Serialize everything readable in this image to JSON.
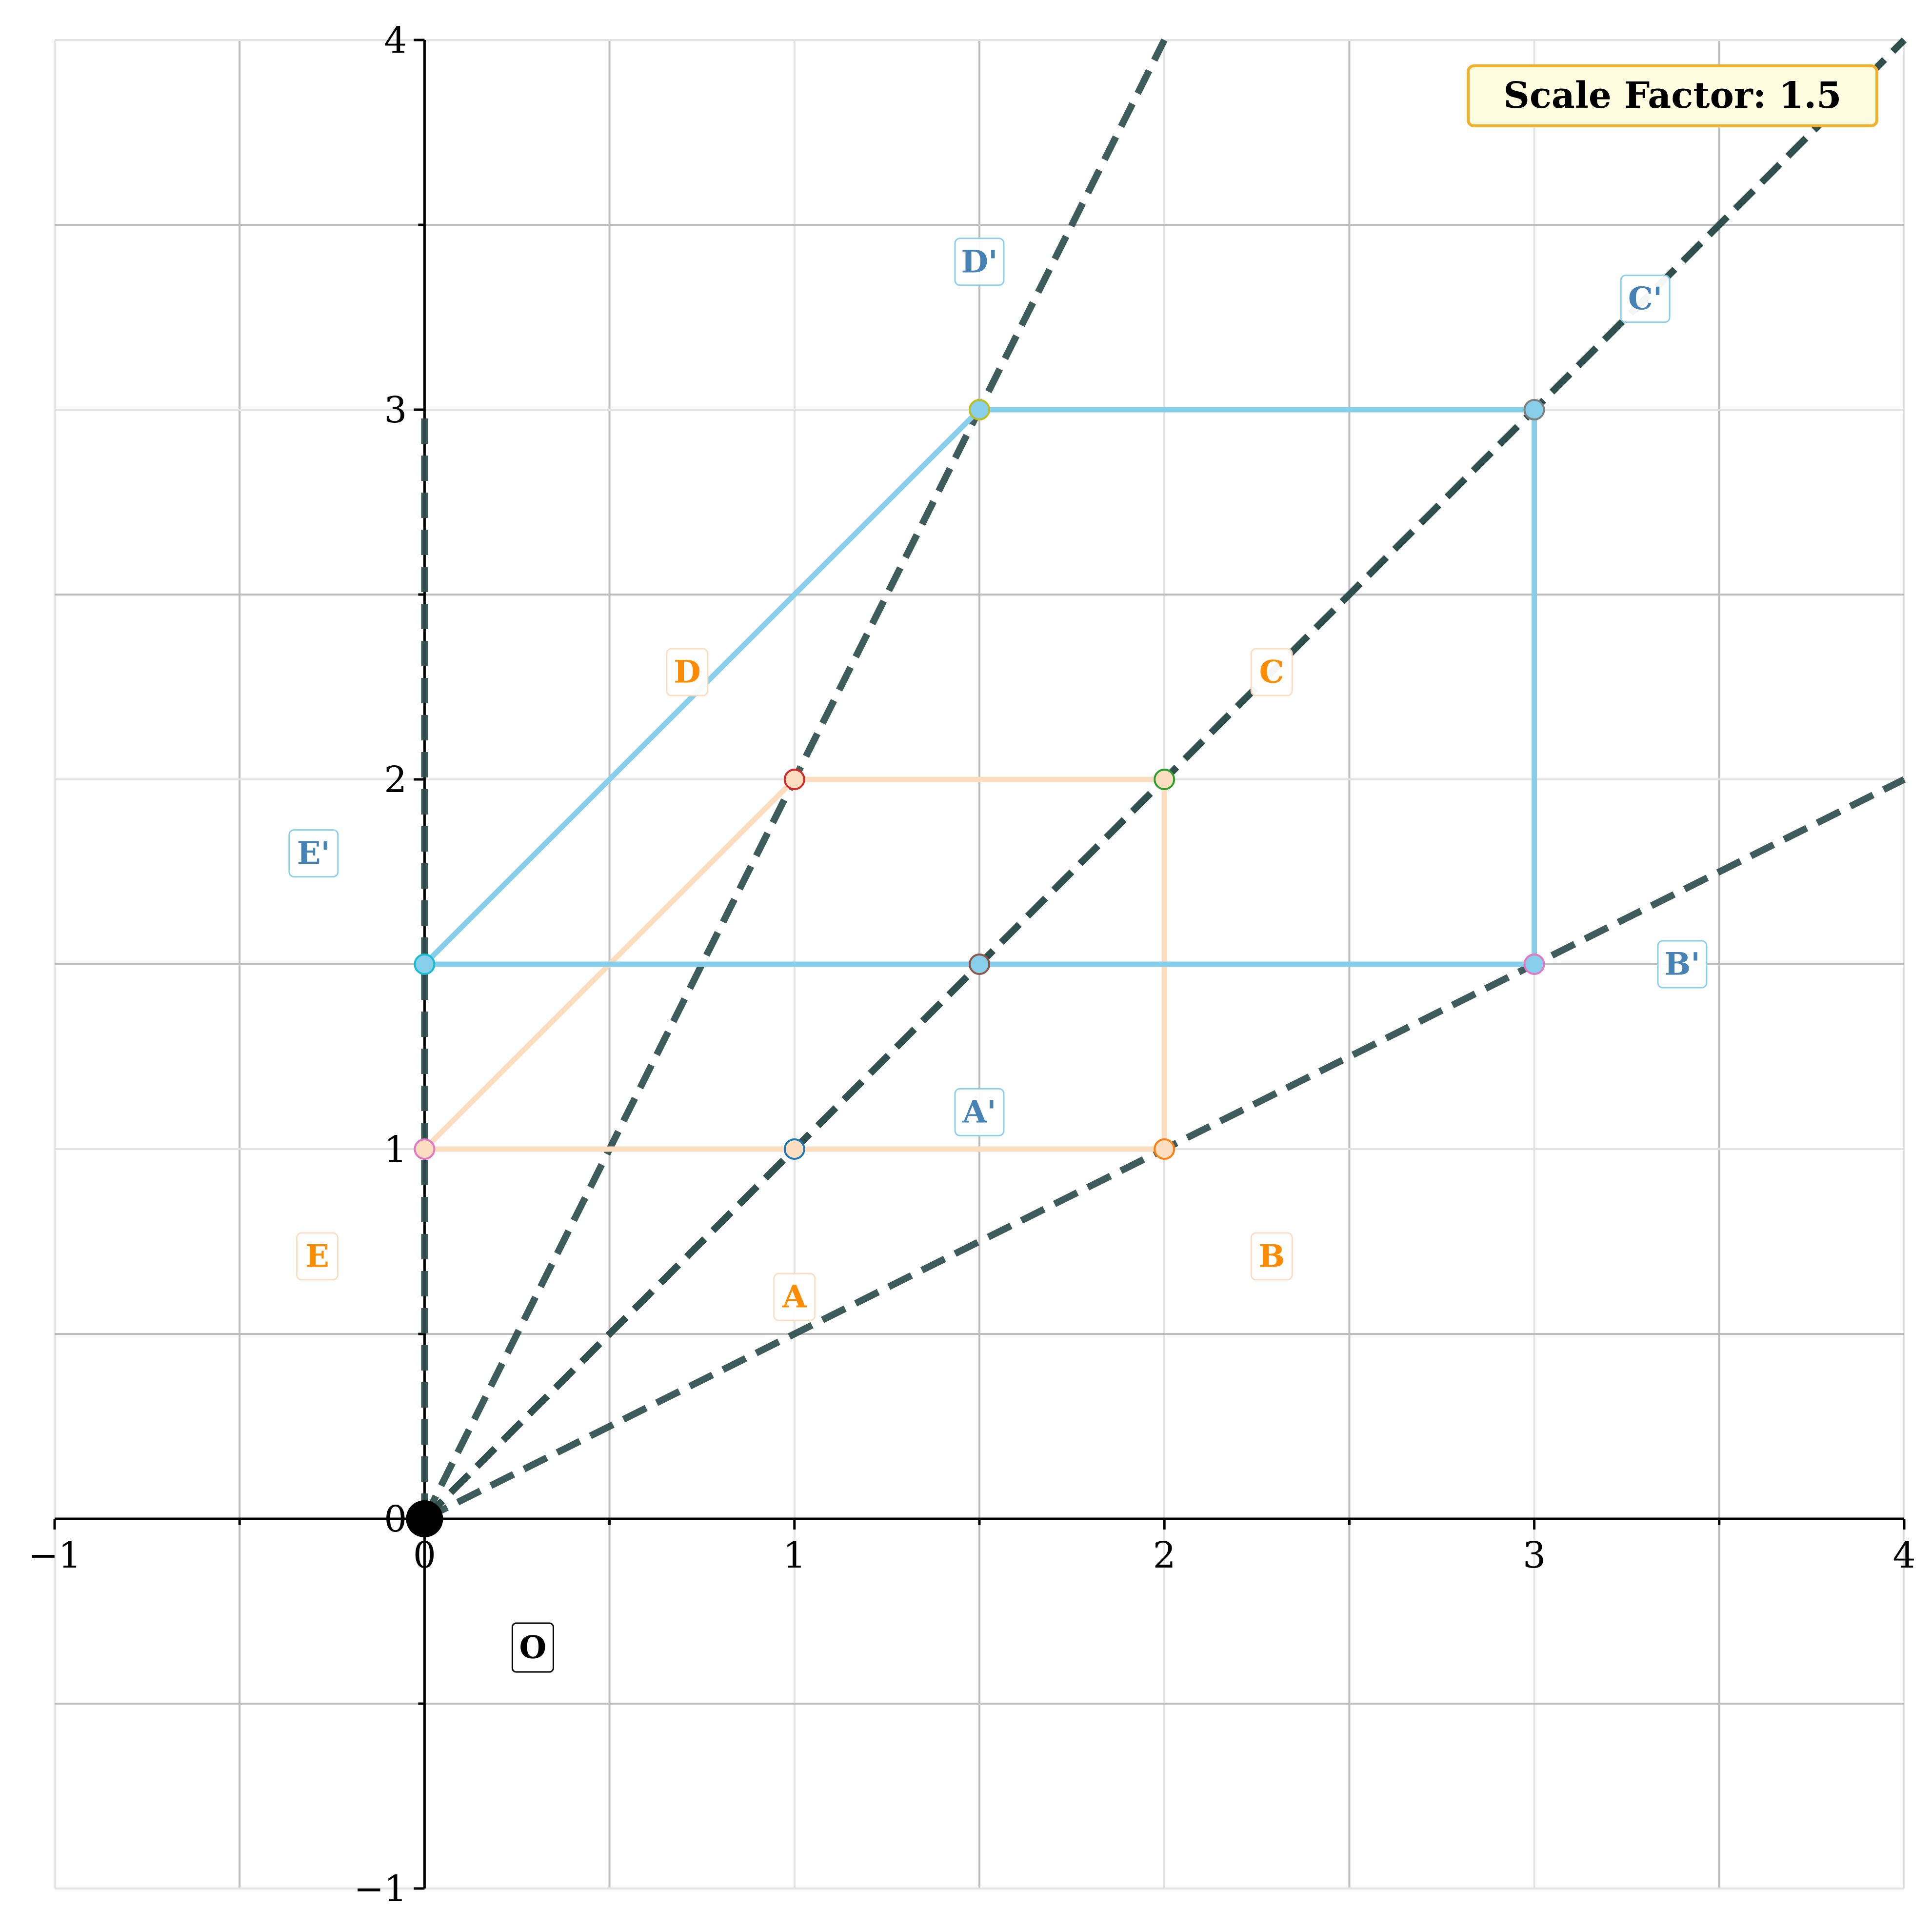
{
  "chart_data": {
    "type": "line",
    "title": "",
    "xlabel": "",
    "ylabel": "",
    "xlim": [
      -1,
      4
    ],
    "ylim": [
      -1,
      4
    ],
    "x_ticks": [
      -1,
      0,
      1,
      2,
      3,
      4
    ],
    "y_ticks": [
      -1,
      0,
      1,
      2,
      3,
      4
    ],
    "x_tick_labels": [
      "−1",
      "0",
      "1",
      "2",
      "3",
      "4"
    ],
    "y_tick_labels": [
      "−1",
      "0",
      "1",
      "2",
      "3",
      "4"
    ],
    "grid": true,
    "center": {
      "label": "O",
      "x": 0,
      "y": 0
    },
    "scale_factor_text": "Scale Factor: 1.5",
    "scale_factor": 1.5,
    "original_polygon": {
      "color": "#FDDDBF",
      "label_color": "#FF8C00",
      "vertices": [
        {
          "name": "A",
          "x": 1,
          "y": 1,
          "marker_edge": "#1f77b4"
        },
        {
          "name": "B",
          "x": 2,
          "y": 1,
          "marker_edge": "#ff7f0e"
        },
        {
          "name": "C",
          "x": 2,
          "y": 2,
          "marker_edge": "#2ca02c"
        },
        {
          "name": "D",
          "x": 1,
          "y": 2,
          "marker_edge": "#d62728"
        },
        {
          "name": "E",
          "x": 0,
          "y": 1,
          "marker_edge": "#e377c2"
        }
      ],
      "label_positions": [
        {
          "name": "A",
          "x": 1.0,
          "y": 0.6
        },
        {
          "name": "B",
          "x": 2.29,
          "y": 0.71
        },
        {
          "name": "C",
          "x": 2.29,
          "y": 2.29
        },
        {
          "name": "D",
          "x": 0.71,
          "y": 2.29
        },
        {
          "name": "E",
          "x": -0.29,
          "y": 0.71
        }
      ]
    },
    "image_polygon": {
      "color": "#87CEEB",
      "label_color": "#4682B4",
      "vertices": [
        {
          "name": "A'",
          "x": 1.5,
          "y": 1.5,
          "marker_edge": "#8c564b"
        },
        {
          "name": "B'",
          "x": 3.0,
          "y": 1.5,
          "marker_edge": "#e377c2"
        },
        {
          "name": "C'",
          "x": 3.0,
          "y": 3.0,
          "marker_edge": "#7f7f7f"
        },
        {
          "name": "D'",
          "x": 1.5,
          "y": 3.0,
          "marker_edge": "#bcbd22"
        },
        {
          "name": "E'",
          "x": 0.0,
          "y": 1.5,
          "marker_edge": "#17becf"
        }
      ],
      "label_positions": [
        {
          "name": "A'",
          "x": 1.5,
          "y": 1.1
        },
        {
          "name": "B'",
          "x": 3.4,
          "y": 1.5
        },
        {
          "name": "C'",
          "x": 3.3,
          "y": 3.3
        },
        {
          "name": "D'",
          "x": 1.5,
          "y": 3.4
        },
        {
          "name": "E'",
          "x": -0.3,
          "y": 1.8
        }
      ]
    },
    "rays": [
      {
        "through": "A",
        "x_end": 4,
        "y_end": 4
      },
      {
        "through": "B",
        "x_end": 4,
        "y_end": 2
      },
      {
        "through": "C",
        "x_end": 4,
        "y_end": 4
      },
      {
        "through": "D",
        "x_end": 2,
        "y_end": 4
      },
      {
        "through": "E",
        "x_end": 0,
        "y_end": 3
      }
    ],
    "colors": {
      "ray": "#2F4F4F",
      "axis": "#000000",
      "grid_major": "#bdbdbd",
      "grid_minor": "#e3e3e3",
      "scale_box_fill": "#FFFDE0",
      "scale_box_edge": "#F2B02F"
    }
  }
}
